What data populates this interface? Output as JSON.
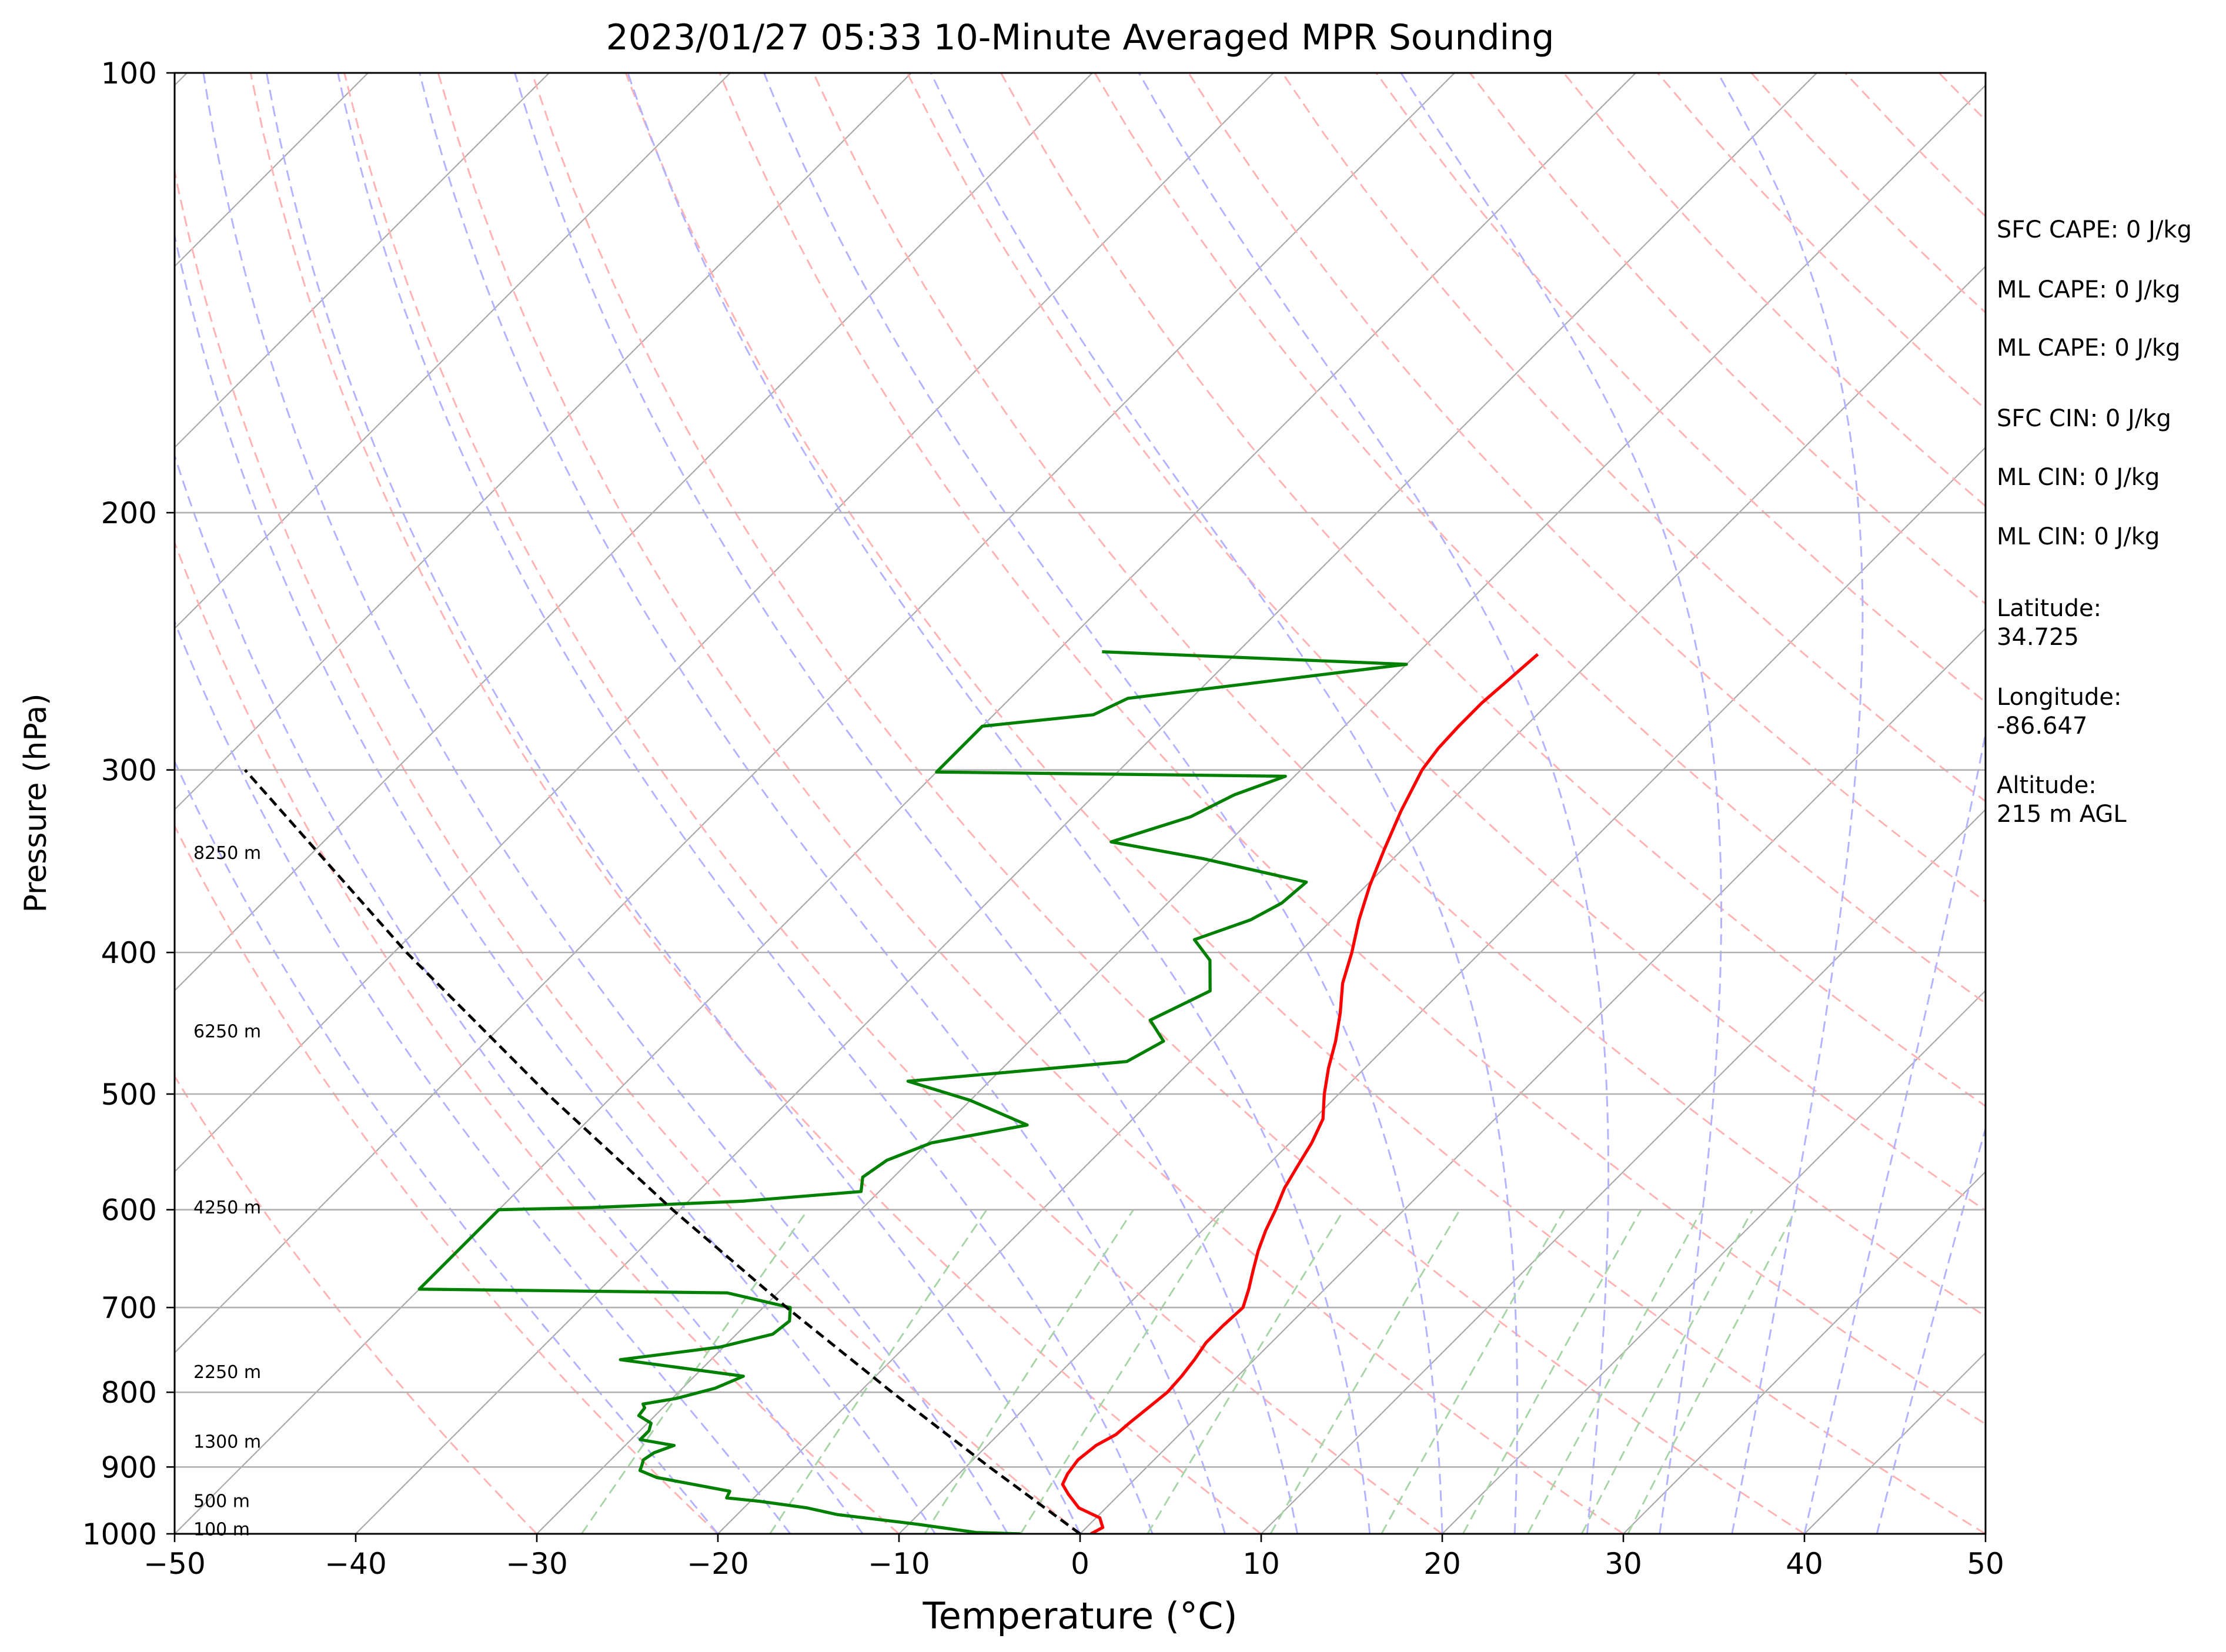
{
  "chart_data": {
    "type": "line",
    "title": "2023/01/27 05:33 10-Minute Averaged MPR Sounding",
    "xlabel": "Temperature (°C)",
    "ylabel": "Pressure (hPa)",
    "xlim": [
      -50,
      50
    ],
    "ylim": [
      1000,
      100
    ],
    "y_scale": "log",
    "skew_t": true,
    "grid": true,
    "x_ticks": [
      -50,
      -40,
      -30,
      -20,
      -10,
      0,
      10,
      20,
      30,
      40,
      50
    ],
    "x_tick_labels": [
      "−50",
      "−40",
      "−30",
      "−20",
      "−10",
      "0",
      "10",
      "20",
      "30",
      "40",
      "50"
    ],
    "y_ticks": [
      100,
      200,
      300,
      400,
      500,
      600,
      700,
      800,
      900,
      1000
    ],
    "y_tick_labels": [
      "100",
      "200",
      "300",
      "400",
      "500",
      "600",
      "700",
      "800",
      "900",
      "1000"
    ],
    "colors": {
      "temperature": "#ff0000",
      "dewpoint": "#008000",
      "parcel": "#000000",
      "isotherm": "#a9a9a9",
      "dry_adiabat": "#ffb3b3",
      "moist_adiabat": "#b3b3ff",
      "mixing_ratio": "#a8d5a8"
    },
    "series": [
      {
        "key": "temperature",
        "points": [
          [
            1000,
            0.6
          ],
          [
            990,
            0.9
          ],
          [
            975,
            0.2
          ],
          [
            960,
            -1.5
          ],
          [
            940,
            -2.8
          ],
          [
            925,
            -3.7
          ],
          [
            910,
            -4.0
          ],
          [
            890,
            -4.2
          ],
          [
            870,
            -4.0
          ],
          [
            855,
            -3.5
          ],
          [
            840,
            -3.4
          ],
          [
            820,
            -3.2
          ],
          [
            800,
            -3.0
          ],
          [
            780,
            -3.1
          ],
          [
            760,
            -3.3
          ],
          [
            740,
            -3.6
          ],
          [
            720,
            -3.6
          ],
          [
            700,
            -3.5
          ],
          [
            680,
            -4.2
          ],
          [
            660,
            -5.0
          ],
          [
            640,
            -5.8
          ],
          [
            620,
            -6.5
          ],
          [
            600,
            -7.1
          ],
          [
            580,
            -7.8
          ],
          [
            560,
            -8.3
          ],
          [
            540,
            -8.8
          ],
          [
            520,
            -9.5
          ],
          [
            500,
            -10.8
          ],
          [
            480,
            -12.0
          ],
          [
            460,
            -13.1
          ],
          [
            440,
            -14.4
          ],
          [
            420,
            -15.9
          ],
          [
            400,
            -17.1
          ],
          [
            380,
            -18.5
          ],
          [
            360,
            -19.8
          ],
          [
            340,
            -21.0
          ],
          [
            320,
            -22.2
          ],
          [
            300,
            -23.3
          ],
          [
            290,
            -23.6
          ],
          [
            280,
            -23.7
          ],
          [
            270,
            -23.7
          ],
          [
            260,
            -23.5
          ],
          [
            250,
            -23.3
          ]
        ],
        "width": 2.2
      },
      {
        "key": "dewpoint",
        "points": [
          [
            1000,
            -3.3
          ],
          [
            998,
            -5.8
          ],
          [
            985,
            -9.5
          ],
          [
            970,
            -14.5
          ],
          [
            960,
            -16.5
          ],
          [
            950,
            -19.5
          ],
          [
            945,
            -21.5
          ],
          [
            935,
            -21.7
          ],
          [
            915,
            -26.5
          ],
          [
            905,
            -27.8
          ],
          [
            897,
            -28.0
          ],
          [
            890,
            -28.2
          ],
          [
            880,
            -28.0
          ],
          [
            870,
            -27.3
          ],
          [
            862,
            -29.5
          ],
          [
            850,
            -29.5
          ],
          [
            840,
            -29.8
          ],
          [
            830,
            -30.9
          ],
          [
            820,
            -31.0
          ],
          [
            815,
            -31.3
          ],
          [
            808,
            -29.8
          ],
          [
            795,
            -28.2
          ],
          [
            780,
            -27.3
          ],
          [
            760,
            -35.0
          ],
          [
            745,
            -30.2
          ],
          [
            730,
            -28.0
          ],
          [
            715,
            -27.8
          ],
          [
            700,
            -28.5
          ],
          [
            684,
            -32.8
          ],
          [
            680,
            -50.0
          ],
          [
            600,
            -50.0
          ],
          [
            598,
            -45.0
          ],
          [
            592,
            -37.0
          ],
          [
            583,
            -31.0
          ],
          [
            570,
            -31.7
          ],
          [
            555,
            -31.3
          ],
          [
            540,
            -29.8
          ],
          [
            525,
            -25.5
          ],
          [
            505,
            -30.0
          ],
          [
            490,
            -34.5
          ],
          [
            475,
            -23.5
          ],
          [
            460,
            -22.6
          ],
          [
            445,
            -24.5
          ],
          [
            425,
            -22.8
          ],
          [
            405,
            -24.5
          ],
          [
            392,
            -26.5
          ],
          [
            380,
            -24.5
          ],
          [
            370,
            -23.7
          ],
          [
            358,
            -23.5
          ],
          [
            345,
            -30.5
          ],
          [
            336,
            -36.5
          ],
          [
            323,
            -33.5
          ],
          [
            312,
            -32.3
          ],
          [
            303,
            -30.5
          ],
          [
            301,
            -50.0
          ],
          [
            280,
            -50.0
          ],
          [
            275,
            -44.5
          ],
          [
            268,
            -43.5
          ],
          [
            254,
            -30.0
          ],
          [
            249,
            -47.5
          ]
        ],
        "width": 2.2
      },
      {
        "key": "parcel",
        "points": [
          [
            1000,
            0.0
          ],
          [
            900,
            -8.7
          ],
          [
            800,
            -18.2
          ],
          [
            700,
            -28.7
          ],
          [
            600,
            -40.4
          ],
          [
            500,
            -53.7
          ],
          [
            400,
            -69.3
          ],
          [
            300,
            -88.3
          ]
        ],
        "width": 2.0
      }
    ],
    "height_labels": [
      {
        "p": 993,
        "text": "100 m"
      },
      {
        "p": 950,
        "text": "500 m"
      },
      {
        "p": 865,
        "text": "1300 m"
      },
      {
        "p": 775,
        "text": "2250 m"
      },
      {
        "p": 598,
        "text": "4250 m"
      },
      {
        "p": 453,
        "text": "6250 m"
      },
      {
        "p": 342,
        "text": "8250 m"
      }
    ],
    "annotations": [
      "SFC CAPE: 0 J/kg",
      "ML CAPE: 0 J/kg",
      "ML CAPE: 0 J/kg",
      "SFC CIN: 0 J/kg",
      "ML CIN: 0 J/kg",
      "ML CIN: 0 J/kg",
      "Latitude:",
      "34.725",
      "Longitude:",
      "-86.647",
      "Altitude:",
      "215 m AGL"
    ]
  }
}
